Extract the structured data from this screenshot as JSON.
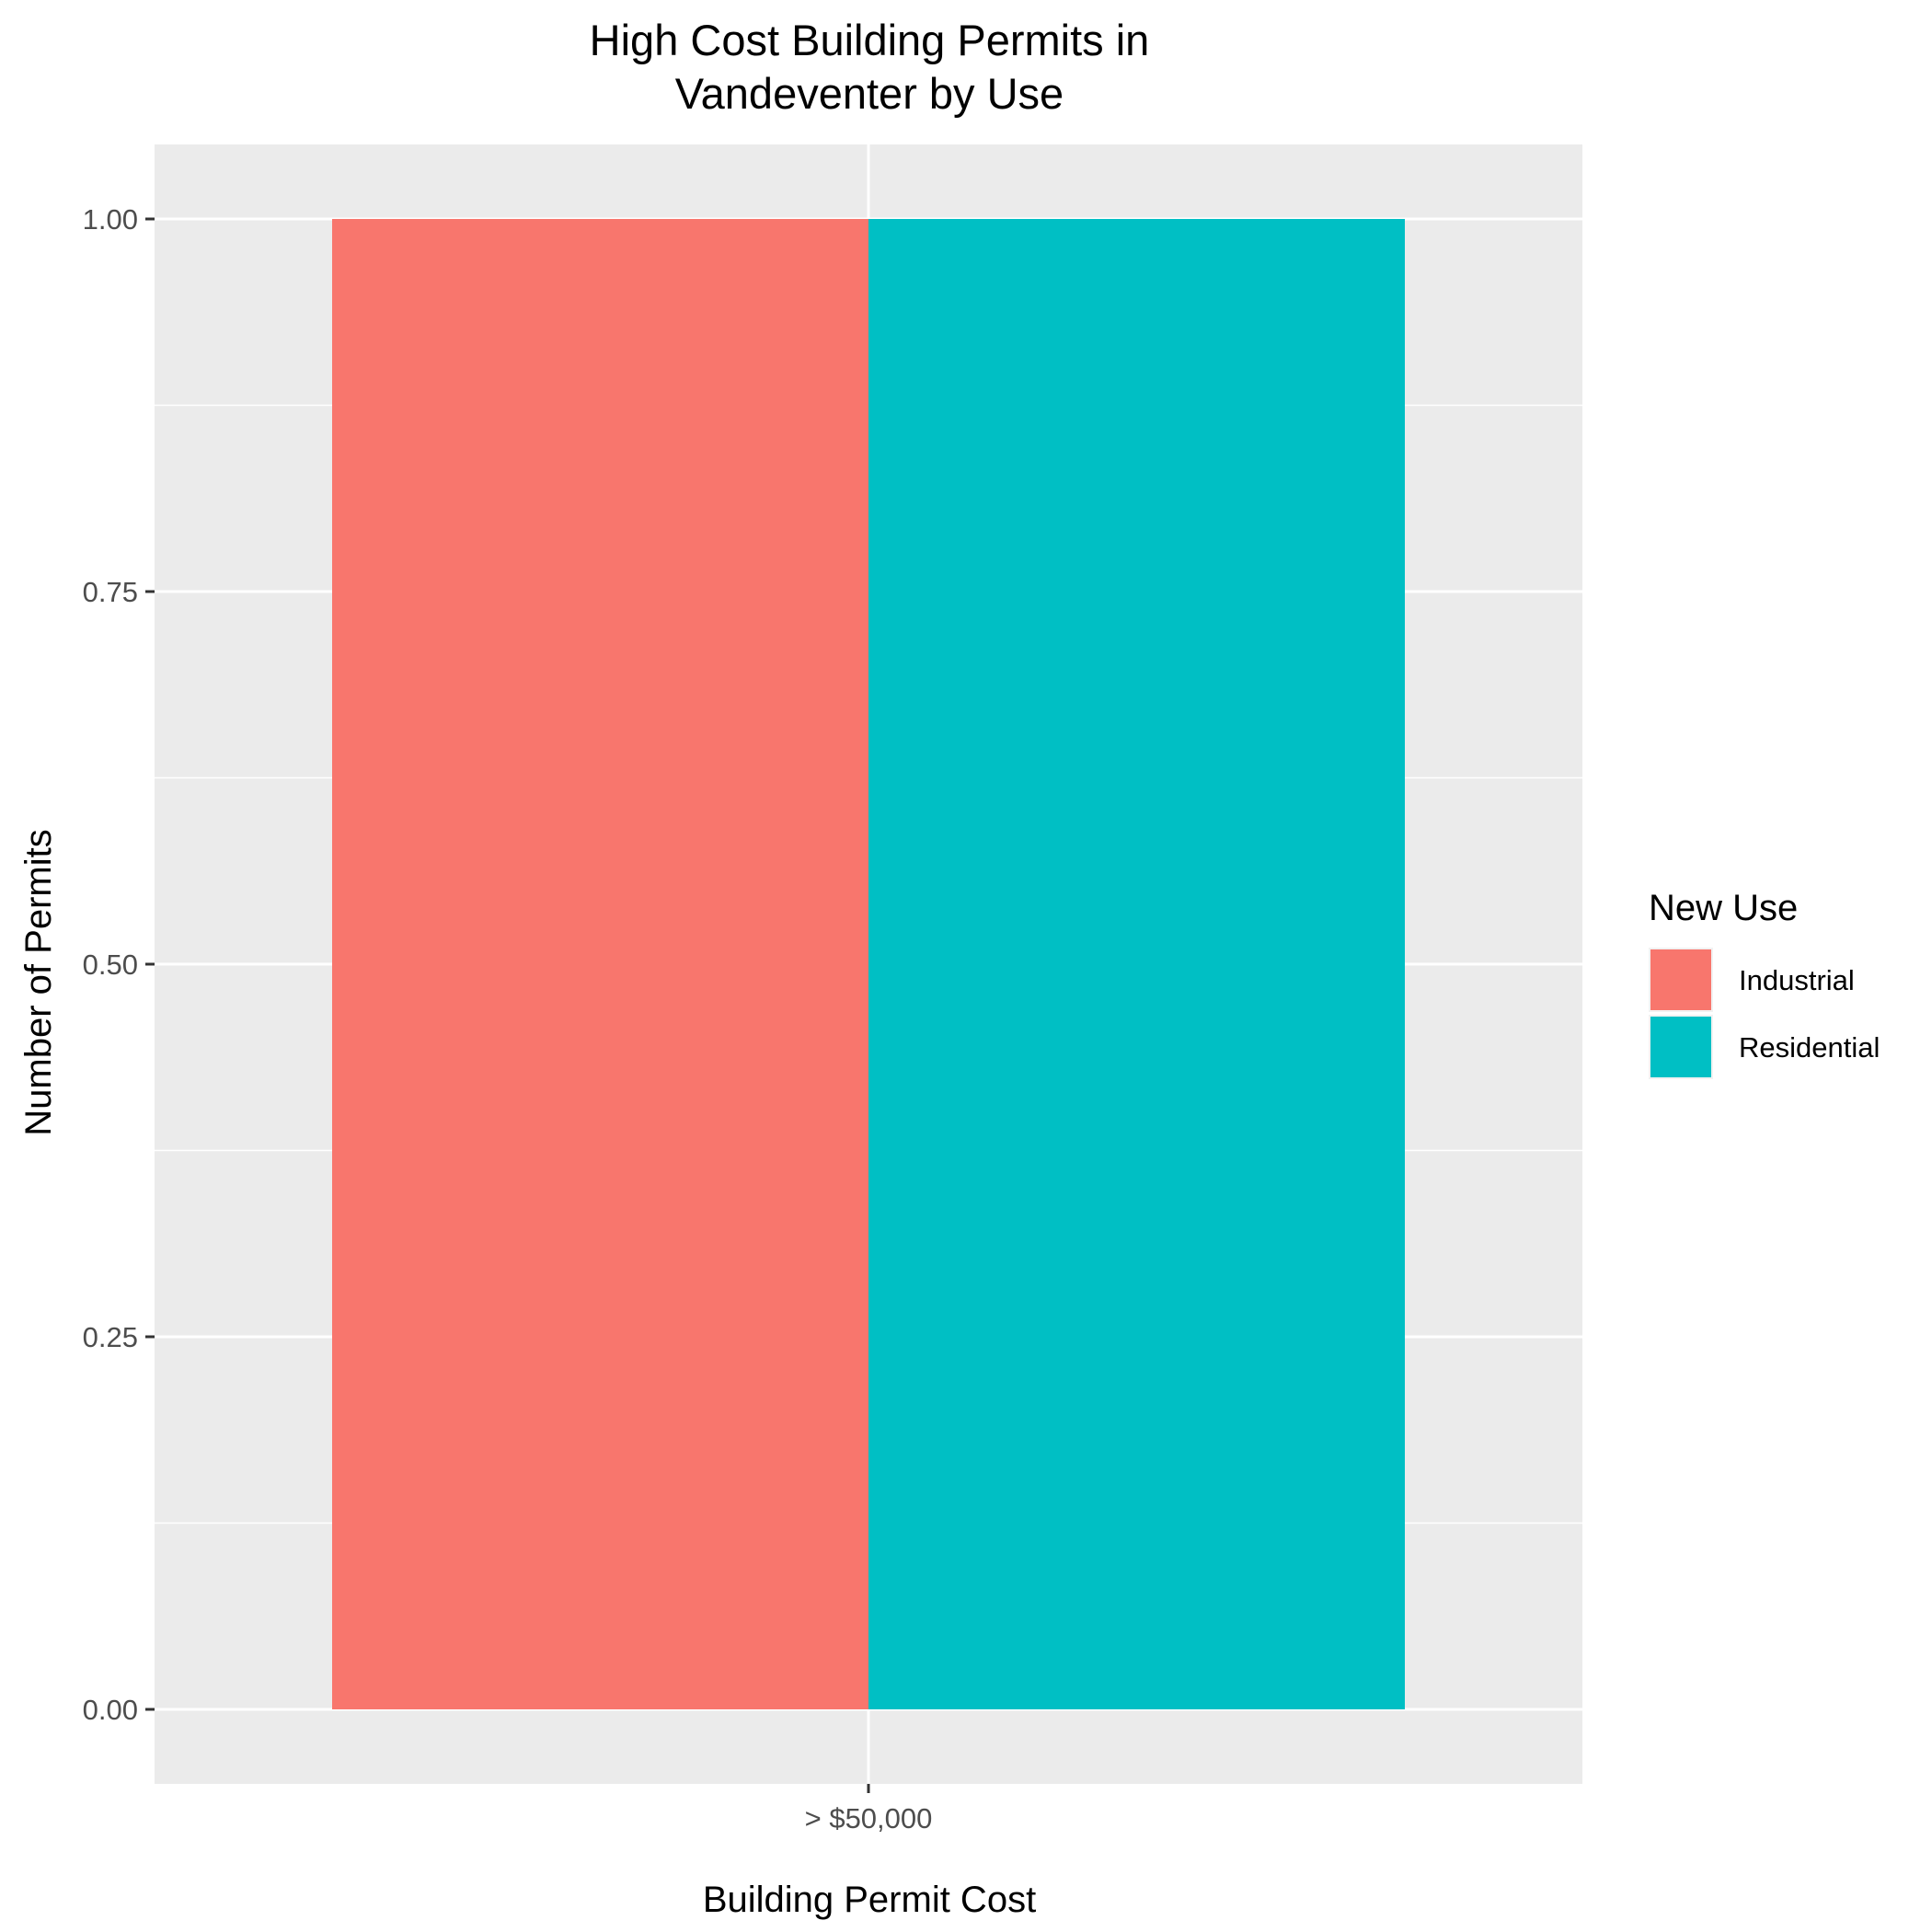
{
  "chart_data": {
    "type": "bar",
    "title_lines": [
      "High Cost Building Permits in",
      "Vandeventer by Use"
    ],
    "xlabel": "Building Permit Cost",
    "ylabel": "Number of Permits",
    "categories": [
      "> $50,000"
    ],
    "series": [
      {
        "name": "Industrial",
        "values": [
          1
        ],
        "color": "#F8766D"
      },
      {
        "name": "Residential",
        "values": [
          1
        ],
        "color": "#00BFC4"
      }
    ],
    "ylim": [
      -0.05,
      1.05
    ],
    "yticks": [
      0.0,
      0.25,
      0.5,
      0.75,
      1.0
    ],
    "ytick_labels": [
      "0.00",
      "0.25",
      "0.50",
      "0.75",
      "1.00"
    ],
    "grid": true,
    "panel_background": "#EBEBEB",
    "legend": {
      "title": "New Use",
      "placement": "right"
    }
  }
}
